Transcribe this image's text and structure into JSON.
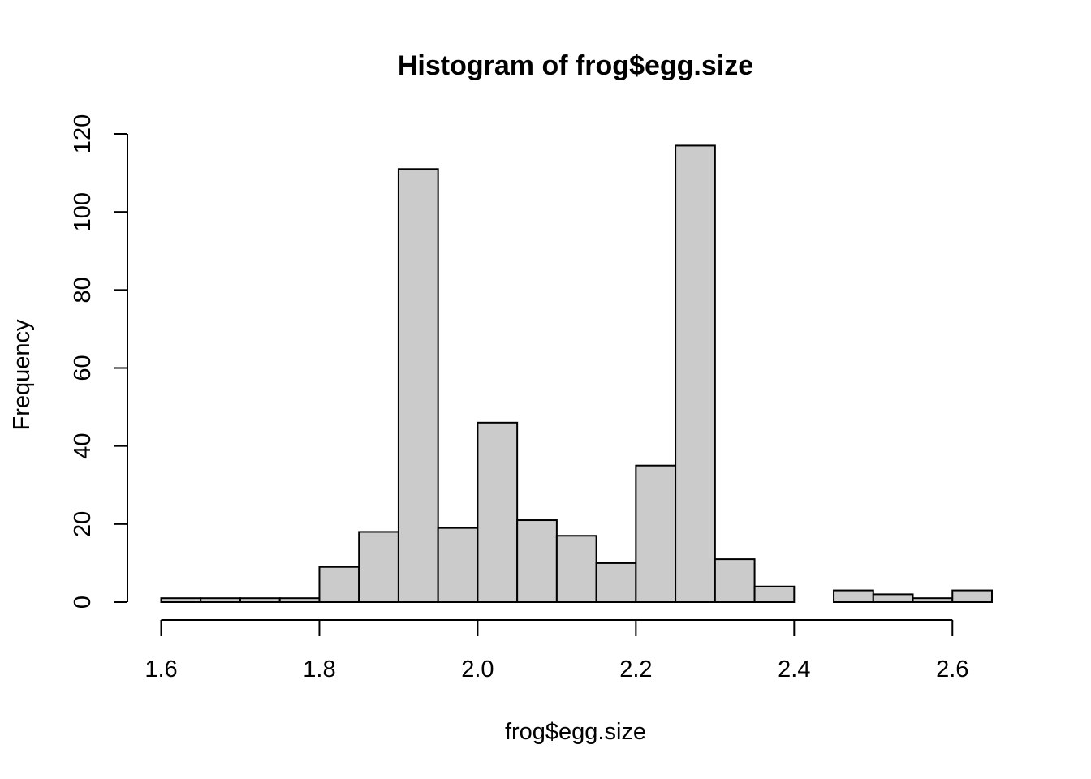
{
  "chart_data": {
    "type": "bar",
    "title": "Histogram of frog$egg.size",
    "xlabel": "frog$egg.size",
    "ylabel": "Frequency",
    "bins": [
      {
        "start": 1.6,
        "end": 1.65,
        "count": 1
      },
      {
        "start": 1.65,
        "end": 1.7,
        "count": 1
      },
      {
        "start": 1.7,
        "end": 1.75,
        "count": 1
      },
      {
        "start": 1.75,
        "end": 1.8,
        "count": 1
      },
      {
        "start": 1.8,
        "end": 1.85,
        "count": 9
      },
      {
        "start": 1.85,
        "end": 1.9,
        "count": 18
      },
      {
        "start": 1.9,
        "end": 1.95,
        "count": 111
      },
      {
        "start": 1.95,
        "end": 2.0,
        "count": 19
      },
      {
        "start": 2.0,
        "end": 2.05,
        "count": 46
      },
      {
        "start": 2.05,
        "end": 2.1,
        "count": 21
      },
      {
        "start": 2.1,
        "end": 2.15,
        "count": 17
      },
      {
        "start": 2.15,
        "end": 2.2,
        "count": 10
      },
      {
        "start": 2.2,
        "end": 2.25,
        "count": 35
      },
      {
        "start": 2.25,
        "end": 2.3,
        "count": 117
      },
      {
        "start": 2.3,
        "end": 2.35,
        "count": 11
      },
      {
        "start": 2.35,
        "end": 2.4,
        "count": 4
      },
      {
        "start": 2.4,
        "end": 2.45,
        "count": 0
      },
      {
        "start": 2.45,
        "end": 2.5,
        "count": 3
      },
      {
        "start": 2.5,
        "end": 2.55,
        "count": 2
      },
      {
        "start": 2.55,
        "end": 2.6,
        "count": 1
      },
      {
        "start": 2.6,
        "end": 2.65,
        "count": 3
      }
    ],
    "xlim": [
      1.6,
      2.65
    ],
    "ylim": [
      0,
      120
    ],
    "x_ticks": [
      "1.6",
      "1.8",
      "2.0",
      "2.2",
      "2.4",
      "2.6"
    ],
    "y_ticks": [
      "0",
      "20",
      "40",
      "60",
      "80",
      "100",
      "120"
    ],
    "grid": false,
    "colors": {
      "bar_fill": "#cbcbcb",
      "bar_stroke": "#000000"
    }
  }
}
